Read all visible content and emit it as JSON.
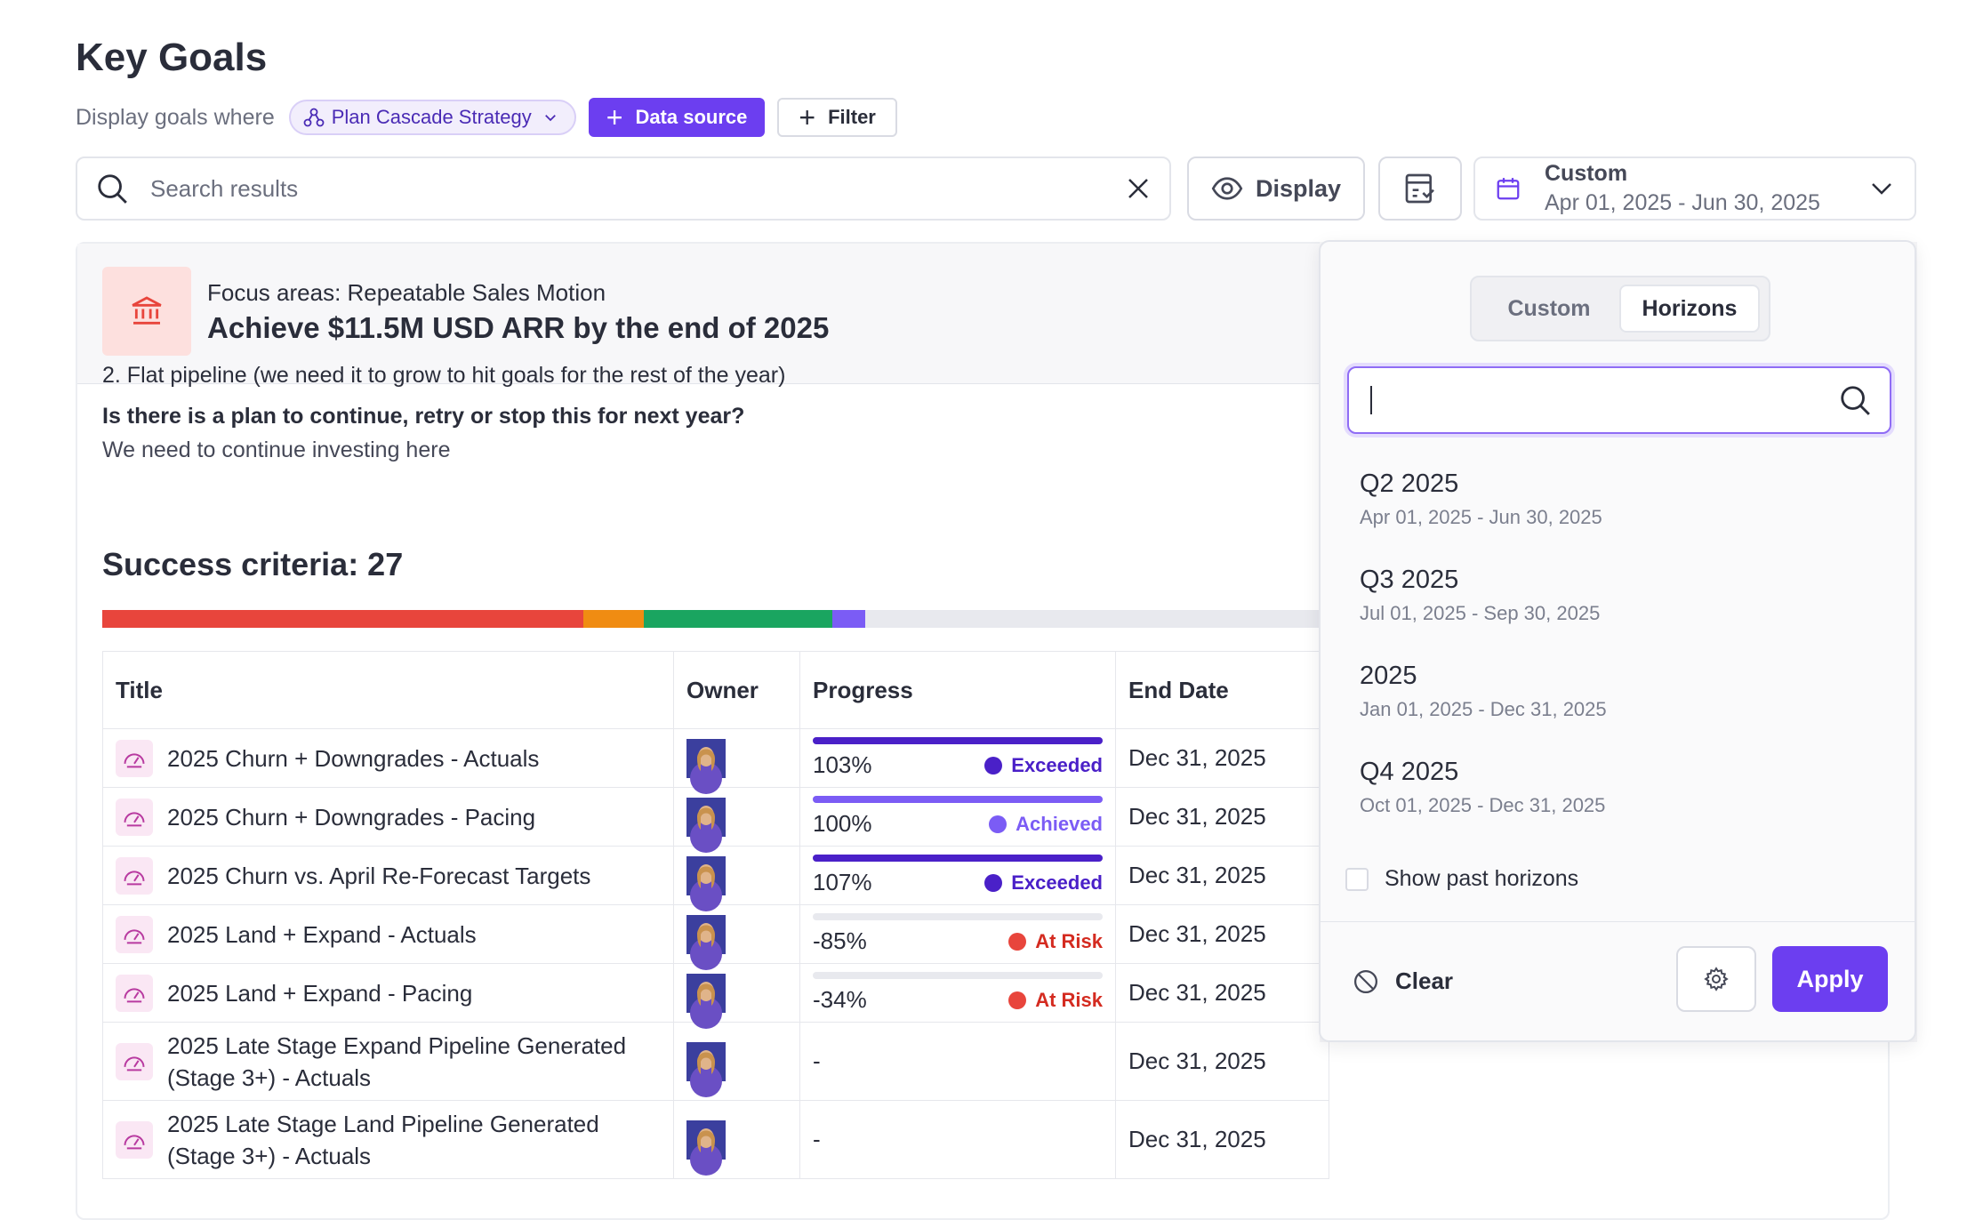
{
  "page": {
    "title": "Key Goals",
    "filter_label": "Display goals where",
    "strategy_chip": "Plan Cascade Strategy",
    "data_source_button": "Data source",
    "filter_button": "Filter"
  },
  "search": {
    "placeholder": "Search results"
  },
  "toolbar": {
    "display_label": "Display"
  },
  "date_select": {
    "label": "Custom",
    "range": "Apr 01, 2025 - Jun 30, 2025"
  },
  "goal": {
    "focus_area": "Focus areas: Repeatable Sales Motion",
    "title": "Achieve $11.5M USD ARR by the end of 2025",
    "cut_text": "2. Flat pipeline (we need it to grow to hit goals for the rest of the year)",
    "question": "Is there is a plan to continue, retry or stop this for next year?",
    "answer": "We need to continue investing here"
  },
  "success_criteria": {
    "title": "Success criteria: 27",
    "segments": [
      {
        "color": "#e8453c",
        "fraction": 0.318
      },
      {
        "color": "#f08c12",
        "fraction": 0.04
      },
      {
        "color": "#1aa560",
        "fraction": 0.125
      },
      {
        "color": "#7b5cf5",
        "fraction": 0.022
      },
      {
        "color": "#e8e9ee",
        "fraction": 0.495
      }
    ]
  },
  "table": {
    "headers": {
      "title": "Title",
      "owner": "Owner",
      "progress": "Progress",
      "end_date": "End Date"
    },
    "rows": [
      {
        "title": "2025 Churn + Downgrades - Actuals",
        "progress": "103%",
        "fill": 1.0,
        "bar_color": "#4a20c8",
        "status": "Exceeded",
        "status_color": "#4a20c8",
        "end_date": "Dec 31, 2025"
      },
      {
        "title": "2025 Churn + Downgrades - Pacing",
        "progress": "100%",
        "fill": 1.0,
        "bar_color": "#7b5cf5",
        "status": "Achieved",
        "status_color": "#7b5cf5",
        "end_date": "Dec 31, 2025"
      },
      {
        "title": "2025 Churn vs. April Re-Forecast Targets",
        "progress": "107%",
        "fill": 1.0,
        "bar_color": "#4a20c8",
        "status": "Exceeded",
        "status_color": "#4a20c8",
        "end_date": "Dec 31, 2025"
      },
      {
        "title": "2025 Land + Expand - Actuals",
        "progress": "-85%",
        "fill": 0,
        "bar_color": "#e8453c",
        "status": "At Risk",
        "status_color": "#d42b20",
        "end_date": "Dec 31, 2025"
      },
      {
        "title": "2025 Land + Expand - Pacing",
        "progress": "-34%",
        "fill": 0,
        "bar_color": "#e8453c",
        "status": "At Risk",
        "status_color": "#d42b20",
        "end_date": "Dec 31, 2025"
      },
      {
        "title": "2025 Late Stage Expand Pipeline Generated (Stage 3+) - Actuals",
        "progress": "-",
        "end_date": "Dec 31, 2025"
      },
      {
        "title": "2025 Late Stage Land Pipeline Generated (Stage 3+) - Actuals",
        "progress": "-",
        "end_date": "Dec 31, 2025"
      }
    ]
  },
  "dropdown": {
    "tabs": [
      "Custom",
      "Horizons"
    ],
    "active_tab": "Horizons",
    "search_value": "",
    "horizons": [
      {
        "name": "Q2 2025",
        "range": "Apr 01, 2025 - Jun 30, 2025"
      },
      {
        "name": "Q3 2025",
        "range": "Jul 01, 2025 - Sep 30, 2025"
      },
      {
        "name": "2025",
        "range": "Jan 01, 2025 - Dec 31, 2025"
      },
      {
        "name": "Q4 2025",
        "range": "Oct 01, 2025 - Dec 31, 2025"
      }
    ],
    "show_past_label": "Show past horizons",
    "clear_label": "Clear",
    "apply_label": "Apply"
  },
  "colors": {
    "accent": "#6c3ef0",
    "danger": "#e8453c"
  }
}
